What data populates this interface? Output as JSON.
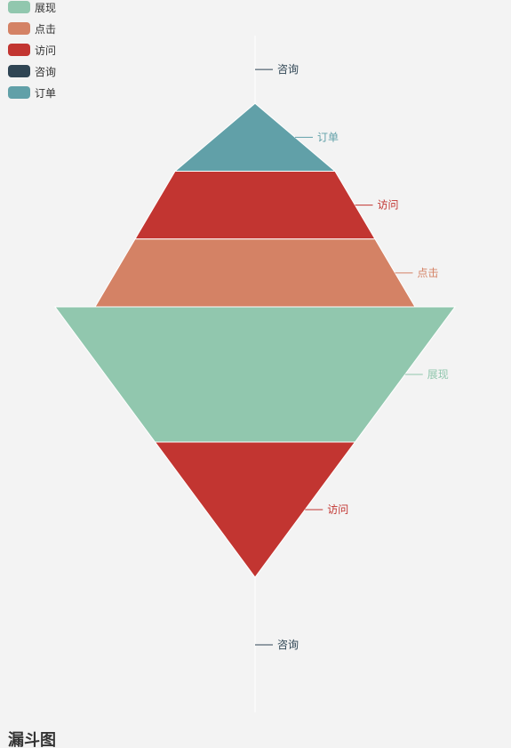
{
  "title": "漏斗图",
  "legend": [
    {
      "name": "展现",
      "color": "#91c7ae"
    },
    {
      "name": "点击",
      "color": "#d48265"
    },
    {
      "name": "访问",
      "color": "#c23531"
    },
    {
      "name": "咨询",
      "color": "#2f4554"
    },
    {
      "name": "订单",
      "color": "#61a0a8"
    }
  ],
  "chart_data": [
    {
      "type": "funnel",
      "sort": "ascending",
      "categories": [
        "咨询",
        "订单",
        "访问",
        "点击"
      ],
      "values": [
        0,
        40,
        60,
        80
      ],
      "labels": [
        "咨询",
        "订单",
        "访问",
        "点击"
      ],
      "colors": [
        "#2f4554",
        "#61a0a8",
        "#c23531",
        "#d48265"
      ],
      "max": 100
    },
    {
      "type": "funnel",
      "sort": "descending",
      "categories": [
        "展现",
        "访问",
        "咨询"
      ],
      "values": [
        100,
        50,
        0
      ],
      "labels": [
        "展现",
        "访问",
        "咨询"
      ],
      "colors": [
        "#91c7ae",
        "#c23531",
        "#2f4554"
      ],
      "max": 100
    }
  ]
}
